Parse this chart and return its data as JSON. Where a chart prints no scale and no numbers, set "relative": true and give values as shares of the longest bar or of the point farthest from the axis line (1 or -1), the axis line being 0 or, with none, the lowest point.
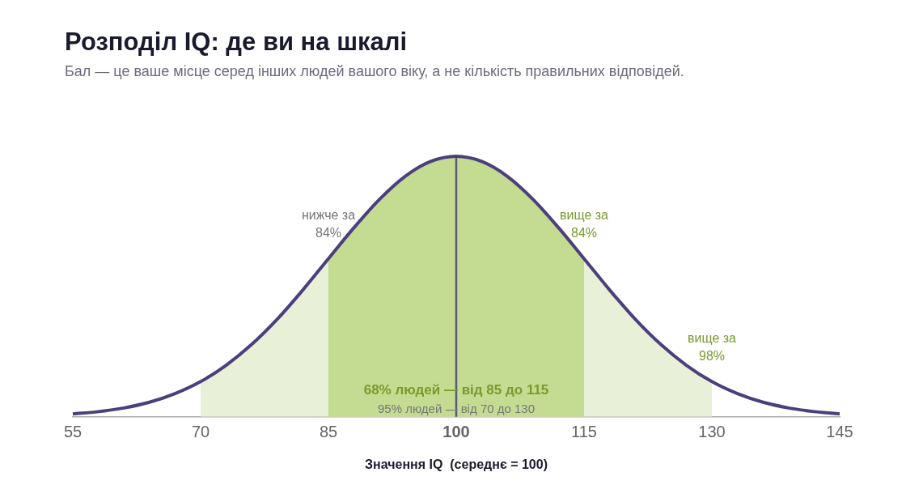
{
  "chart_data": {
    "type": "line",
    "title": "Розподіл IQ: де ви на шкалі",
    "subtitle": "Бал — це ваше місце серед інших людей вашого віку, а не кількість правильних відповідей.",
    "xlabel": "Значення IQ  (середнє = 100)",
    "relative": true,
    "xlim": [
      55,
      145
    ],
    "xticks": [
      55,
      70,
      85,
      100,
      115,
      130,
      145
    ],
    "grid": false,
    "legend": false,
    "series": [
      {
        "type": "area",
        "color": "#e9f0d8",
        "x": [
          70,
          73,
          76,
          79,
          82,
          85,
          88,
          91,
          94,
          97,
          100,
          103,
          106,
          109,
          112,
          115,
          118,
          121,
          124,
          127,
          130
        ],
        "values": [
          0.135,
          0.198,
          0.278,
          0.375,
          0.487,
          0.607,
          0.726,
          0.835,
          0.923,
          0.98,
          1,
          0.98,
          0.923,
          0.835,
          0.726,
          0.607,
          0.487,
          0.375,
          0.278,
          0.198,
          0.135
        ]
      },
      {
        "type": "area",
        "color": "#c3dc91",
        "x": [
          85,
          88,
          91,
          94,
          97,
          100,
          103,
          106,
          109,
          112,
          115
        ],
        "values": [
          0.607,
          0.726,
          0.835,
          0.923,
          0.98,
          1,
          0.98,
          0.923,
          0.835,
          0.726,
          0.607
        ]
      },
      {
        "type": "line",
        "color": "#4b3f7c",
        "x": [
          55,
          58,
          61,
          64,
          67,
          70,
          73,
          76,
          79,
          82,
          85,
          88,
          91,
          94,
          97,
          100,
          103,
          106,
          109,
          112,
          115,
          118,
          121,
          124,
          127,
          130,
          133,
          136,
          139,
          142,
          145
        ],
        "values": [
          0.011,
          0.02,
          0.034,
          0.056,
          0.089,
          0.135,
          0.198,
          0.278,
          0.375,
          0.487,
          0.607,
          0.726,
          0.835,
          0.923,
          0.98,
          1,
          0.98,
          0.923,
          0.835,
          0.726,
          0.607,
          0.487,
          0.375,
          0.278,
          0.198,
          0.135,
          0.089,
          0.056,
          0.034,
          0.02,
          0.011
        ]
      }
    ],
    "ref_lines": [
      {
        "axis": "x",
        "value": 100,
        "color": "#5a5a7a"
      }
    ],
    "annotations": [
      {
        "text": "нижче за 84%",
        "x": 85,
        "y": 0.607
      },
      {
        "text": "вище за 84%",
        "x": 115,
        "y": 0.607
      },
      {
        "text": "вище за 98%",
        "x": 130,
        "y": 0.135
      },
      "68% людей — від 85 до 115",
      "95% людей — від 70 до 130"
    ]
  }
}
